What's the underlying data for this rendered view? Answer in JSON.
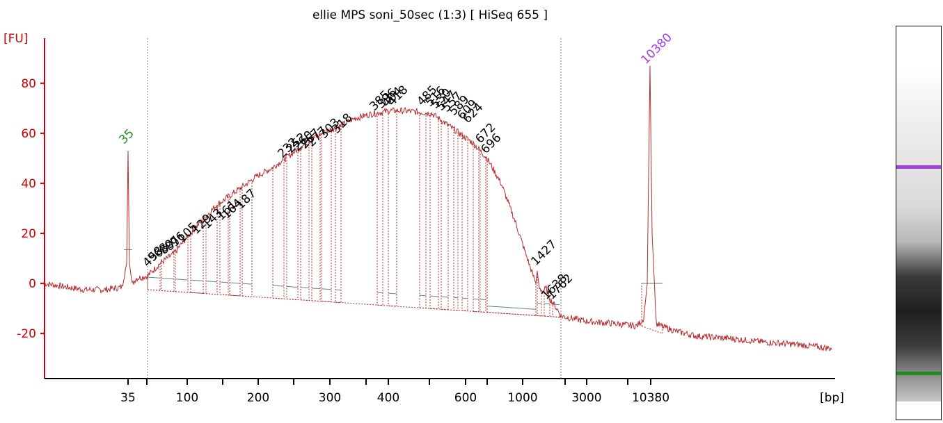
{
  "chart_data": {
    "type": "line",
    "title": "ellie MPS soni_50sec (1:3)  [ HiSeq 655 ]",
    "ylabel": "[FU]",
    "xlabel": "[bp]",
    "ylim": [
      -38,
      98
    ],
    "y_ticks": [
      -20,
      0,
      20,
      40,
      60,
      80
    ],
    "x_tick_labels": [
      "35",
      "100",
      "200",
      "300",
      "400",
      "600",
      "1000",
      "3000",
      "10380"
    ],
    "grid": false,
    "colors": {
      "trace": "#b52b2b",
      "axis": "#cc0000",
      "lower_marker": "#228b22",
      "upper_marker": "#a040e0",
      "baseline": "#5b8a8a",
      "label": "#000000"
    },
    "peaks": [
      {
        "label": "35",
        "color": "lower_marker",
        "fu": 53
      },
      {
        "label": "10380",
        "color": "upper_marker",
        "fu": 87
      },
      {
        "label": "1427",
        "fu": 5
      },
      {
        "label": "1638",
        "fu": -2
      },
      {
        "label": "1762",
        "fu": -4
      }
    ],
    "fragment_labels": [
      "49",
      "58",
      "68",
      "80",
      "87",
      "96",
      "105",
      "129",
      "143",
      "161",
      "164",
      "187",
      "232",
      "252",
      "260",
      "267",
      "277",
      "303",
      "318",
      "385",
      "396",
      "404",
      "418",
      "485",
      "516",
      "530",
      "547",
      "557",
      "589",
      "609",
      "624",
      "672",
      "696"
    ]
  },
  "gel": {
    "lower_marker_color": "#228b22",
    "upper_marker_color": "#a040e0"
  }
}
